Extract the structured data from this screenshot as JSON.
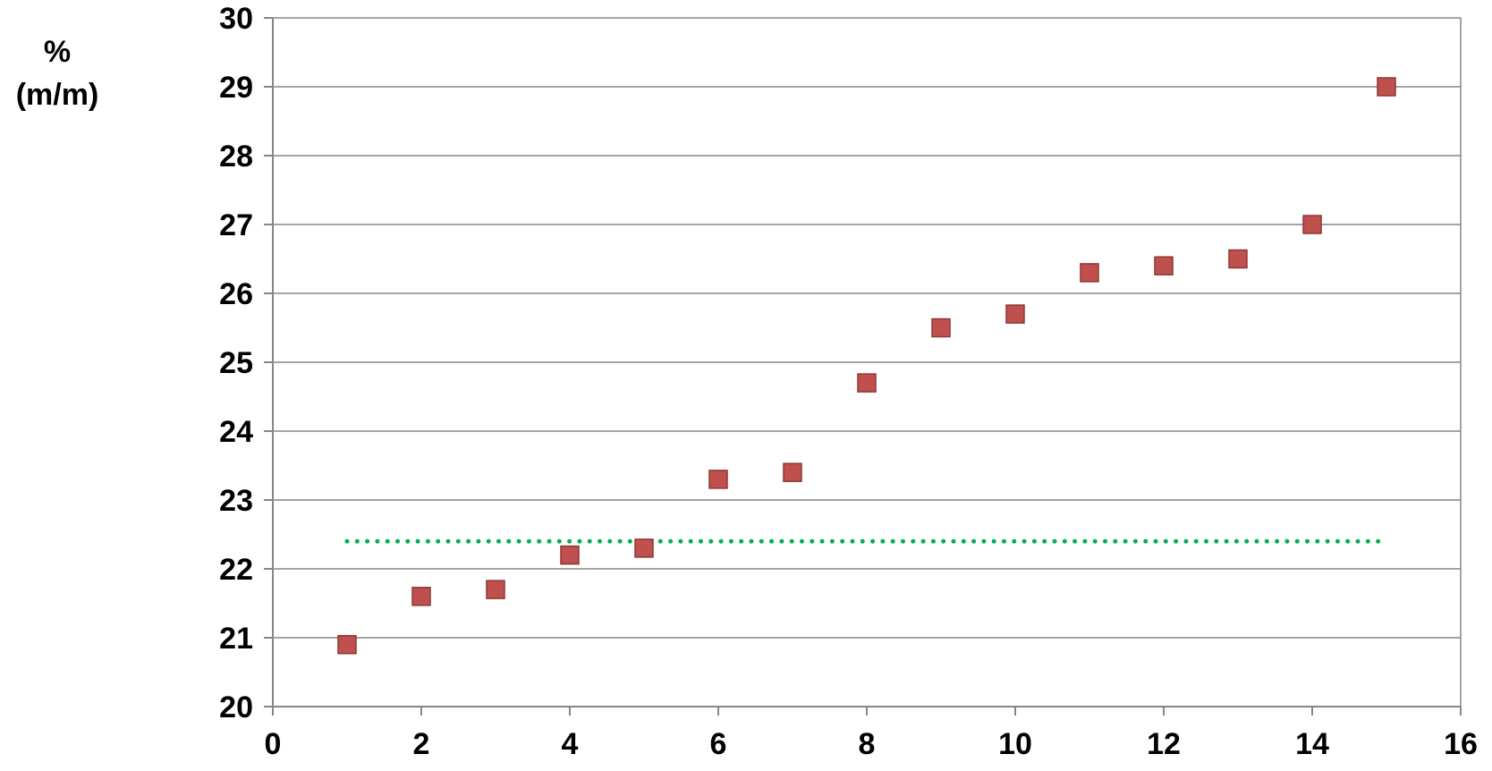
{
  "chart_data": {
    "type": "scatter",
    "title": "",
    "xlabel": "",
    "ylabel_line1": "%",
    "ylabel_line2": "(m/m)",
    "xlim": [
      0,
      16
    ],
    "ylim": [
      20,
      30
    ],
    "x_ticks": [
      0,
      2,
      4,
      6,
      8,
      10,
      12,
      14,
      16
    ],
    "y_ticks": [
      20,
      21,
      22,
      23,
      24,
      25,
      26,
      27,
      28,
      29,
      30
    ],
    "grid": "horizontal",
    "legend": "none",
    "series": [
      {
        "marker": "square",
        "color": "#c0504d",
        "points": [
          {
            "x": 1,
            "y": 20.9
          },
          {
            "x": 2,
            "y": 21.6
          },
          {
            "x": 3,
            "y": 21.7
          },
          {
            "x": 4,
            "y": 22.2
          },
          {
            "x": 5,
            "y": 22.3
          },
          {
            "x": 6,
            "y": 23.3
          },
          {
            "x": 7,
            "y": 23.4
          },
          {
            "x": 8,
            "y": 24.7
          },
          {
            "x": 9,
            "y": 25.5
          },
          {
            "x": 10,
            "y": 25.7
          },
          {
            "x": 11,
            "y": 26.3
          },
          {
            "x": 12,
            "y": 26.4
          },
          {
            "x": 13,
            "y": 26.5
          },
          {
            "x": 14,
            "y": 27.0
          },
          {
            "x": 15,
            "y": 29.0
          }
        ]
      }
    ],
    "reference_line": {
      "style": "dotted",
      "color": "#00b050",
      "y": 22.4,
      "x_start": 1,
      "x_end": 15
    }
  }
}
